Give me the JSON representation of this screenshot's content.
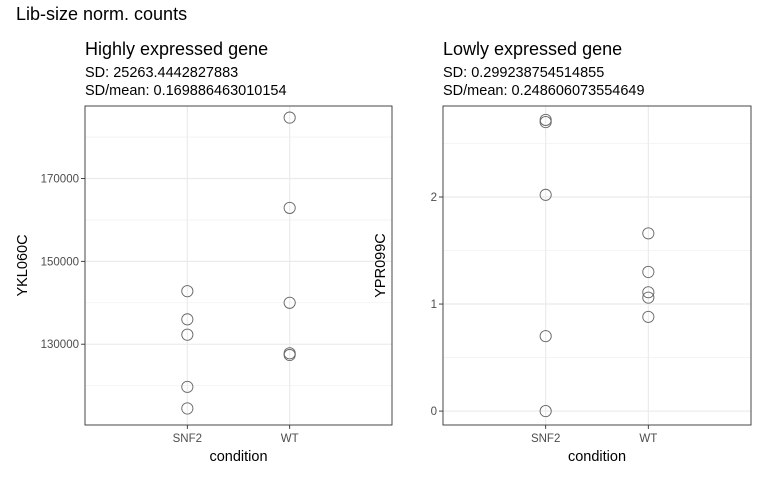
{
  "page": {
    "title": "Lib-size norm. counts"
  },
  "chart_data": [
    {
      "type": "scatter",
      "title": "Highly expressed gene",
      "subtitle_sd": "SD: 25263.4442827883",
      "subtitle_cv": "SD/mean: 0.169886463010154",
      "xlabel": "condition",
      "ylabel": "YKL060C",
      "categories": [
        "SNF2",
        "WT"
      ],
      "y_ticks": [
        130000,
        150000,
        170000
      ],
      "y_tick_labels": [
        "130000",
        "150000",
        "170000"
      ],
      "ylim": [
        110500,
        187500
      ],
      "grid": true,
      "series": [
        {
          "category": "SNF2",
          "values": [
            142800,
            136000,
            132300,
            119700,
            114500
          ]
        },
        {
          "category": "WT",
          "values": [
            184700,
            162900,
            140000,
            127800,
            127400
          ]
        }
      ]
    },
    {
      "type": "scatter",
      "title": "Lowly expressed gene",
      "subtitle_sd": "SD: 0.299238754514855",
      "subtitle_cv": "SD/mean: 0.248606073554649",
      "xlabel": "condition",
      "ylabel": "YPR099C",
      "categories": [
        "SNF2",
        "WT"
      ],
      "y_ticks": [
        0,
        1,
        2
      ],
      "y_tick_labels": [
        "0",
        "1",
        "2"
      ],
      "ylim": [
        -0.13,
        2.85
      ],
      "grid": true,
      "series": [
        {
          "category": "SNF2",
          "values": [
            2.72,
            2.7,
            2.02,
            0.7,
            0.0
          ]
        },
        {
          "category": "WT",
          "values": [
            1.66,
            1.3,
            1.11,
            1.06,
            0.88
          ]
        }
      ]
    }
  ]
}
